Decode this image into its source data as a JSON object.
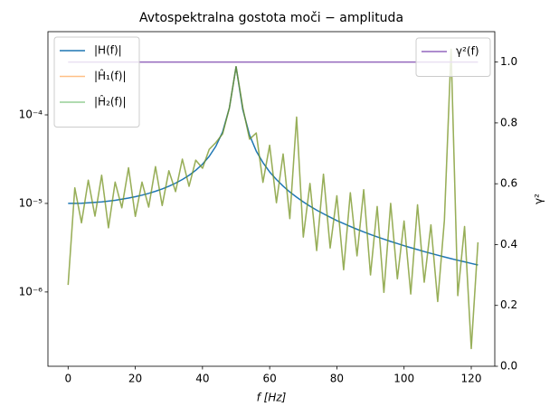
{
  "chart_data": {
    "type": "line",
    "title": "Avtospektralna gostota moči − amplituda",
    "xlabel": "f [Hz]",
    "y2label": "γ²",
    "log_y": true,
    "xlim": [
      -6,
      127
    ],
    "xticks": [
      0,
      20,
      40,
      60,
      80,
      100,
      120
    ],
    "ylim": [
      1.45e-07,
      0.00087
    ],
    "yticks": [
      {
        "value": 1e-06,
        "label": "10⁻⁶"
      },
      {
        "value": 1e-05,
        "label": "10⁻⁵"
      },
      {
        "value": 0.0001,
        "label": "10⁻⁴"
      }
    ],
    "y2lim": [
      0,
      1.1
    ],
    "y2ticks": [
      {
        "value": 0,
        "label": "0.0"
      },
      0.2,
      0.4,
      0.6,
      0.8,
      {
        "value": 1,
        "label": "1.0"
      }
    ],
    "legend": "upper left",
    "legend2": "upper right",
    "x": [
      0,
      2,
      4,
      6,
      8,
      10,
      12,
      14,
      16,
      18,
      20,
      22,
      24,
      26,
      28,
      30,
      32,
      34,
      36,
      38,
      40,
      42,
      44,
      46,
      48,
      50,
      52,
      54,
      56,
      58,
      60,
      62,
      64,
      66,
      68,
      70,
      72,
      74,
      76,
      78,
      80,
      82,
      84,
      86,
      88,
      90,
      92,
      94,
      96,
      98,
      100,
      102,
      104,
      106,
      108,
      110,
      112,
      114,
      116,
      118,
      120,
      122
    ],
    "series": [
      {
        "name": "|H(f)|",
        "color": "#1f77b4",
        "opacity": 1,
        "values": [
          1e-05,
          1e-05,
          1.006e-05,
          1.015e-05,
          1.026e-05,
          1.042e-05,
          1.061e-05,
          1.085e-05,
          1.114e-05,
          1.149e-05,
          1.19e-05,
          1.24e-05,
          1.299e-05,
          1.371e-05,
          1.457e-05,
          1.563e-05,
          1.694e-05,
          1.86e-05,
          2.077e-05,
          2.368e-05,
          2.778e-05,
          3.397e-05,
          4.43e-05,
          6.41e-05,
          0.00012,
          0.00035,
          0.000115,
          5.91e-05,
          3.9e-05,
          2.89e-05,
          2.27e-05,
          1.86e-05,
          1.57e-05,
          1.347e-05,
          1.177e-05,
          1.042e-05,
          9.31e-06,
          8.4e-06,
          7.63e-06,
          6.98e-06,
          6.41e-06,
          5.92e-06,
          5.49e-06,
          5.11e-06,
          4.77e-06,
          4.46e-06,
          4.19e-06,
          3.95e-06,
          3.72e-06,
          3.52e-06,
          3.33e-06,
          3.16e-06,
          3.01e-06,
          2.86e-06,
          2.73e-06,
          2.6e-06,
          2.49e-06,
          2.38e-06,
          2.28e-06,
          2.19e-06,
          2.1e-06,
          2.02e-06
        ]
      },
      {
        "name": "|Ĥ₁(f)|",
        "color": "#ff7f0e",
        "opacity": 0.5,
        "values": [
          1.2e-06,
          1.5e-05,
          6.04e-06,
          1.83e-05,
          7.18e-06,
          2.08e-05,
          5.31e-06,
          1.74e-05,
          8.91e-06,
          2.53e-05,
          7.14e-06,
          1.74e-05,
          9.09e-06,
          2.6e-05,
          9.47e-06,
          2.34e-05,
          1.36e-05,
          3.16e-05,
          1.56e-05,
          3.08e-05,
          2.5e-05,
          4.08e-05,
          4.87e-05,
          6.09e-05,
          0.00012,
          0.00035,
          0.000121,
          5.32e-05,
          6.24e-05,
          1.73e-05,
          4.54e-05,
          1.02e-05,
          3.61e-05,
          6.74e-06,
          9.42e-05,
          4.17e-06,
          1.68e-05,
          2.94e-06,
          2.14e-05,
          3.14e-06,
          1.22e-05,
          1.78e-06,
          1.32e-05,
          2.56e-06,
          1.43e-05,
          1.56e-06,
          9.22e-06,
          9.9e-07,
          1e-05,
          1.41e-06,
          6.33e-06,
          9.5e-07,
          9.63e-06,
          1.29e-06,
          5.73e-06,
          7.8e-07,
          6.47e-06,
          0.00055,
          9.1e-07,
          5.48e-06,
          2.3e-07,
          3.64e-06
        ]
      },
      {
        "name": "|Ĥ₂(f)|",
        "color": "#2ca02c",
        "opacity": 0.5,
        "values": [
          1.2e-06,
          1.5e-05,
          6.04e-06,
          1.83e-05,
          7.18e-06,
          2.08e-05,
          5.31e-06,
          1.74e-05,
          8.91e-06,
          2.53e-05,
          7.14e-06,
          1.74e-05,
          9.09e-06,
          2.6e-05,
          9.47e-06,
          2.34e-05,
          1.36e-05,
          3.16e-05,
          1.56e-05,
          3.08e-05,
          2.5e-05,
          4.08e-05,
          4.87e-05,
          6.09e-05,
          0.00012,
          0.00035,
          0.000121,
          5.32e-05,
          6.24e-05,
          1.73e-05,
          4.54e-05,
          1.02e-05,
          3.61e-05,
          6.74e-06,
          9.42e-05,
          4.17e-06,
          1.68e-05,
          2.94e-06,
          2.14e-05,
          3.14e-06,
          1.22e-05,
          1.78e-06,
          1.32e-05,
          2.56e-06,
          1.43e-05,
          1.56e-06,
          9.22e-06,
          9.9e-07,
          1e-05,
          1.41e-06,
          6.33e-06,
          9.5e-07,
          9.63e-06,
          1.29e-06,
          5.73e-06,
          7.8e-07,
          6.47e-06,
          0.00055,
          9.1e-07,
          5.48e-06,
          2.3e-07,
          3.64e-06
        ]
      },
      {
        "name": "γ²(f)",
        "color": "#9467bd",
        "opacity": 1,
        "axis": "y2",
        "x": [
          0,
          122
        ],
        "values": [
          1.0,
          1.0
        ]
      }
    ]
  }
}
